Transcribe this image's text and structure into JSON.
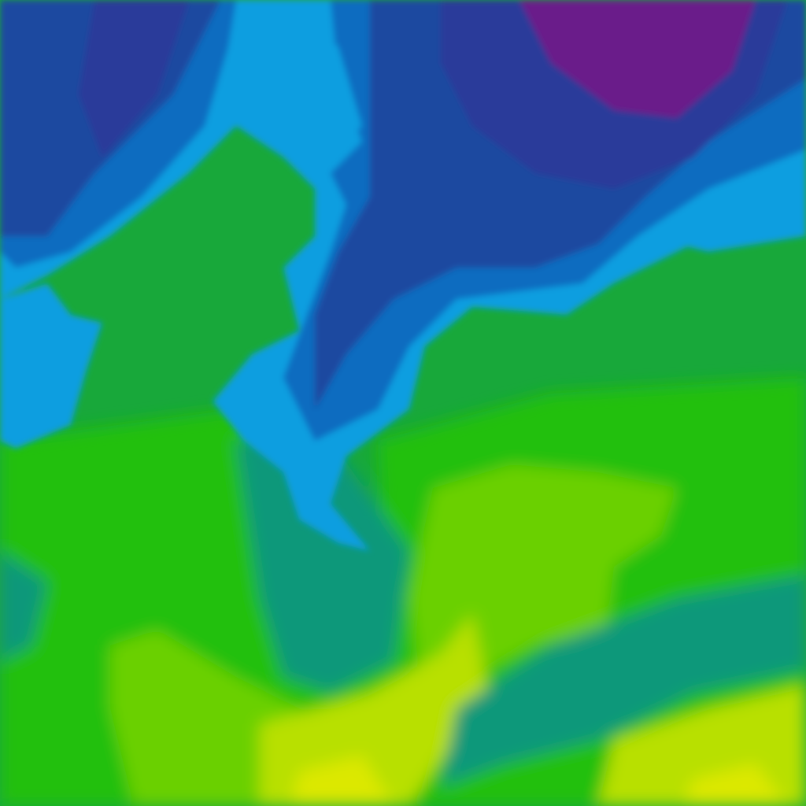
{
  "map": {
    "kind": "temperature-contour-tile",
    "palette": {
      "deep_purple": "#6a1a8a",
      "indigo": "#2a3a9a",
      "navy_blue": "#1e4aa0",
      "blue": "#0a6cc0",
      "light_blue": "#0a9ee0",
      "teal_green": "#10987a",
      "green": "#18a83a",
      "bright_green": "#22c010",
      "lime": "#6ad000",
      "yellow_green": "#b8e000",
      "yellow": "#dce800"
    }
  }
}
